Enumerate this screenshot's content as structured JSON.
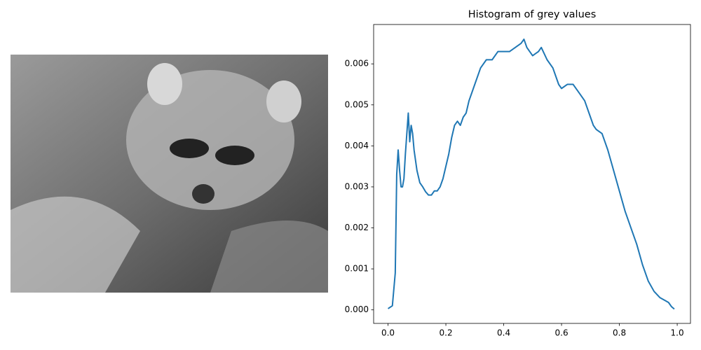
{
  "chart_data": {
    "type": "line",
    "title": "Histogram of grey values",
    "color": "#1f77b4",
    "x": [
      0.0,
      0.015,
      0.025,
      0.03,
      0.035,
      0.04,
      0.045,
      0.05,
      0.055,
      0.06,
      0.065,
      0.07,
      0.075,
      0.08,
      0.085,
      0.09,
      0.1,
      0.11,
      0.12,
      0.13,
      0.14,
      0.15,
      0.16,
      0.17,
      0.18,
      0.19,
      0.2,
      0.21,
      0.22,
      0.23,
      0.24,
      0.25,
      0.26,
      0.27,
      0.28,
      0.29,
      0.3,
      0.32,
      0.34,
      0.36,
      0.38,
      0.4,
      0.42,
      0.44,
      0.46,
      0.47,
      0.48,
      0.5,
      0.52,
      0.53,
      0.55,
      0.57,
      0.59,
      0.6,
      0.62,
      0.64,
      0.66,
      0.68,
      0.7,
      0.71,
      0.72,
      0.74,
      0.76,
      0.78,
      0.8,
      0.82,
      0.84,
      0.86,
      0.88,
      0.9,
      0.92,
      0.94,
      0.96,
      0.97,
      0.98,
      0.99
    ],
    "values": [
      3e-05,
      0.0001,
      0.0009,
      0.0033,
      0.0039,
      0.0034,
      0.003,
      0.003,
      0.0032,
      0.0038,
      0.0043,
      0.0048,
      0.0041,
      0.0045,
      0.0043,
      0.0039,
      0.0034,
      0.0031,
      0.003,
      0.00288,
      0.0028,
      0.0028,
      0.0029,
      0.0029,
      0.003,
      0.0032,
      0.0035,
      0.0038,
      0.0042,
      0.0045,
      0.0046,
      0.0045,
      0.0047,
      0.0048,
      0.0051,
      0.0053,
      0.0055,
      0.0059,
      0.0061,
      0.0061,
      0.0063,
      0.0063,
      0.0063,
      0.0064,
      0.0065,
      0.0066,
      0.0064,
      0.0062,
      0.0063,
      0.0064,
      0.0061,
      0.0059,
      0.0055,
      0.0054,
      0.0055,
      0.0055,
      0.0053,
      0.0051,
      0.0047,
      0.0045,
      0.0044,
      0.0043,
      0.0039,
      0.0034,
      0.0029,
      0.0024,
      0.002,
      0.0016,
      0.0011,
      0.0007,
      0.00045,
      0.0003,
      0.00022,
      0.00018,
      8e-05,
      2e-05
    ],
    "xlim": [
      -0.0498,
      1.0459
    ],
    "ylim": [
      -0.00033,
      0.00696
    ],
    "xticks": [
      {
        "value": 0,
        "label": "0.0"
      },
      0.2,
      0.4,
      0.6,
      0.8,
      {
        "value": 1,
        "label": "1.0"
      }
    ],
    "yticks": [
      {
        "value": 0,
        "label": "0.000"
      },
      0.001,
      0.002,
      0.003,
      0.004,
      0.005,
      0.006
    ]
  }
}
